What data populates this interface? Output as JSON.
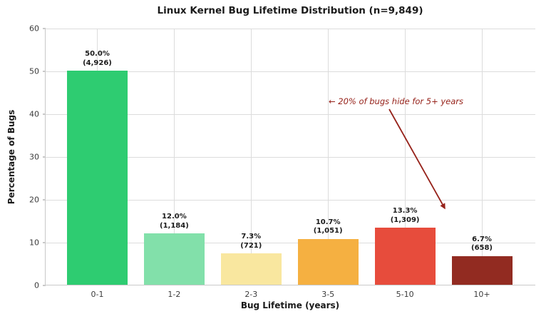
{
  "chart_data": {
    "type": "bar",
    "title": "Linux Kernel Bug Lifetime Distribution (n=9,849)",
    "xlabel": "Bug Lifetime (years)",
    "ylabel": "Percentage of Bugs",
    "categories": [
      "0-1",
      "1-2",
      "2-3",
      "3-5",
      "5-10",
      "10+"
    ],
    "values": [
      50.0,
      12.0,
      7.3,
      10.7,
      13.3,
      6.7
    ],
    "counts": [
      4926,
      1184,
      721,
      1051,
      1309,
      658
    ],
    "pct_labels": [
      "50.0%",
      "12.0%",
      "7.3%",
      "10.7%",
      "13.3%",
      "6.7%"
    ],
    "count_labels": [
      "(4,926)",
      "(1,184)",
      "(721)",
      "(1,051)",
      "(1,309)",
      "(658)"
    ],
    "bar_colors": [
      "#2ecc71",
      "#82e0aa",
      "#f9e79f",
      "#f5b041",
      "#e74c3c",
      "#922b21"
    ],
    "ylim": [
      0,
      60
    ],
    "yticks": [
      0,
      10,
      20,
      30,
      40,
      50,
      60
    ],
    "grid": true,
    "legend": "none",
    "total_n": "9,849",
    "annotation": {
      "text": "← 20% of bugs hide for 5+ years",
      "color": "#96221a"
    }
  },
  "colors": {
    "grid": "#dcdcdc",
    "spine": "#c9c9c9",
    "text": "#1a1a1a",
    "tick_text": "#3b3b3b",
    "background": "#ffffff"
  }
}
